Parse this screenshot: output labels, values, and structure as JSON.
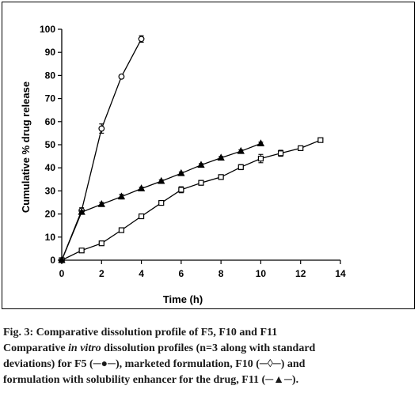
{
  "chart_data": {
    "type": "line",
    "title": "",
    "xlabel": "Time (h)",
    "ylabel": "Cumulative % drug release",
    "xlim": [
      0,
      14
    ],
    "ylim": [
      0,
      100
    ],
    "x_ticks": [
      "0",
      "2",
      "4",
      "6",
      "8",
      "10",
      "12",
      "14"
    ],
    "y_ticks": [
      "0",
      "10",
      "20",
      "30",
      "40",
      "50",
      "60",
      "70",
      "80",
      "90",
      "100"
    ],
    "grid": false,
    "series": [
      {
        "marker": "circle",
        "x": [
          0,
          1,
          2,
          3,
          4
        ],
        "y": [
          0,
          21.5,
          57,
          79.5,
          95.8
        ],
        "error": [
          0,
          1.2,
          2.0,
          0.6,
          1.4
        ]
      },
      {
        "marker": "square",
        "x": [
          0,
          1,
          2,
          3,
          4,
          5,
          6,
          7,
          8,
          9,
          10,
          11,
          12,
          13
        ],
        "y": [
          0,
          4.2,
          7.3,
          13,
          19,
          24.8,
          30.5,
          33.5,
          36,
          40.3,
          44,
          46.3,
          48.5,
          52
        ],
        "error": [
          0,
          0.7,
          0.8,
          0.8,
          0.9,
          0.9,
          1.3,
          1.0,
          1.0,
          1.1,
          1.8,
          1.3,
          0.8,
          0.8
        ]
      },
      {
        "marker": "triangle",
        "x": [
          0,
          1,
          2,
          3,
          4,
          5,
          6,
          7,
          8,
          9,
          10
        ],
        "y": [
          0,
          20.8,
          24.2,
          27.5,
          31,
          34.2,
          37.6,
          41.2,
          44.3,
          47.2,
          50.5
        ],
        "error": [
          0,
          0.6,
          0.8,
          1.0,
          0.6,
          0.6,
          0.6,
          0.6,
          0.6,
          0.6,
          0.6
        ]
      }
    ]
  },
  "caption": {
    "line1": "Fig. 3: Comparative dissolution profile of F5, F10 and F11",
    "line2_pre": "Comparative ",
    "line2_em": "in vitro",
    "line2_post": " dissolution profiles (n=3 along with standard",
    "line3": "deviations) for F5 (─●─), marketed formulation, F10 (─◊─) and",
    "line4": "formulation with solubility enhancer for the drug, F11 (─▲─)."
  }
}
